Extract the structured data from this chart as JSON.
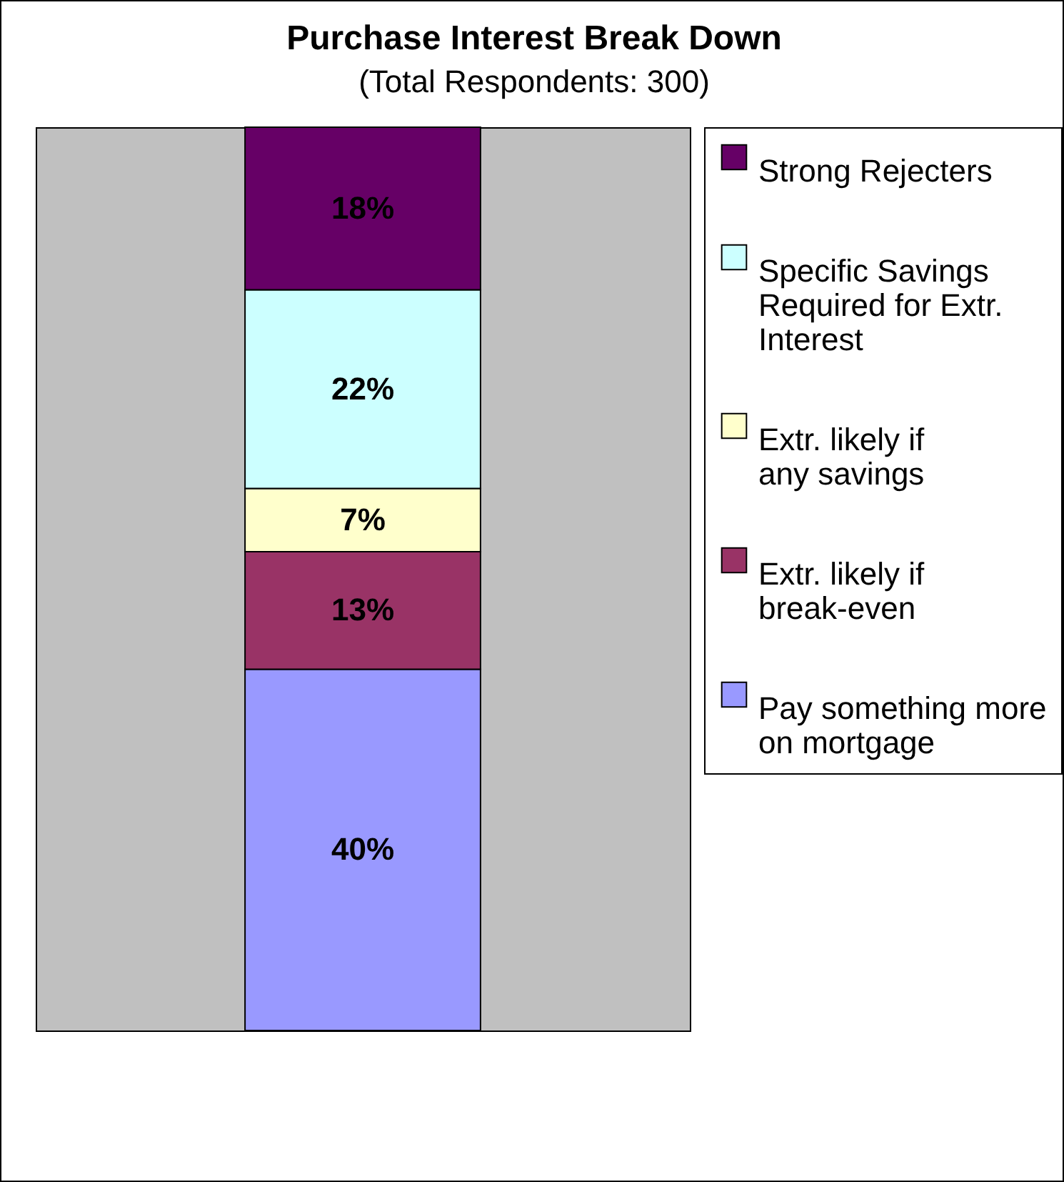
{
  "chart_data": {
    "type": "bar",
    "title": "Purchase Interest Break Down",
    "subtitle": "(Total Respondents: 300)",
    "categories": [
      null
    ],
    "stacked": true,
    "tick_labels": false,
    "legend": "right",
    "grid": false,
    "series": [
      {
        "name": "Pay something more on mortgage",
        "color": "#9999ff",
        "values": [
          40
        ],
        "value_labels": [
          "40%"
        ]
      },
      {
        "name": "Extr. likely if break-even",
        "color": "#993366",
        "values": [
          13
        ],
        "value_labels": [
          "13%"
        ]
      },
      {
        "name": "Extr. likely if any savings",
        "color": "#ffffcc",
        "values": [
          7
        ],
        "value_labels": [
          "7%"
        ]
      },
      {
        "name": "Specific Savings Required for Extr. Interest",
        "color": "#ccffff",
        "values": [
          22
        ],
        "value_labels": [
          "22%"
        ]
      },
      {
        "name": "Strong Rejecters",
        "color": "#660066",
        "values": [
          18
        ],
        "value_labels": [
          "18%"
        ]
      }
    ]
  }
}
